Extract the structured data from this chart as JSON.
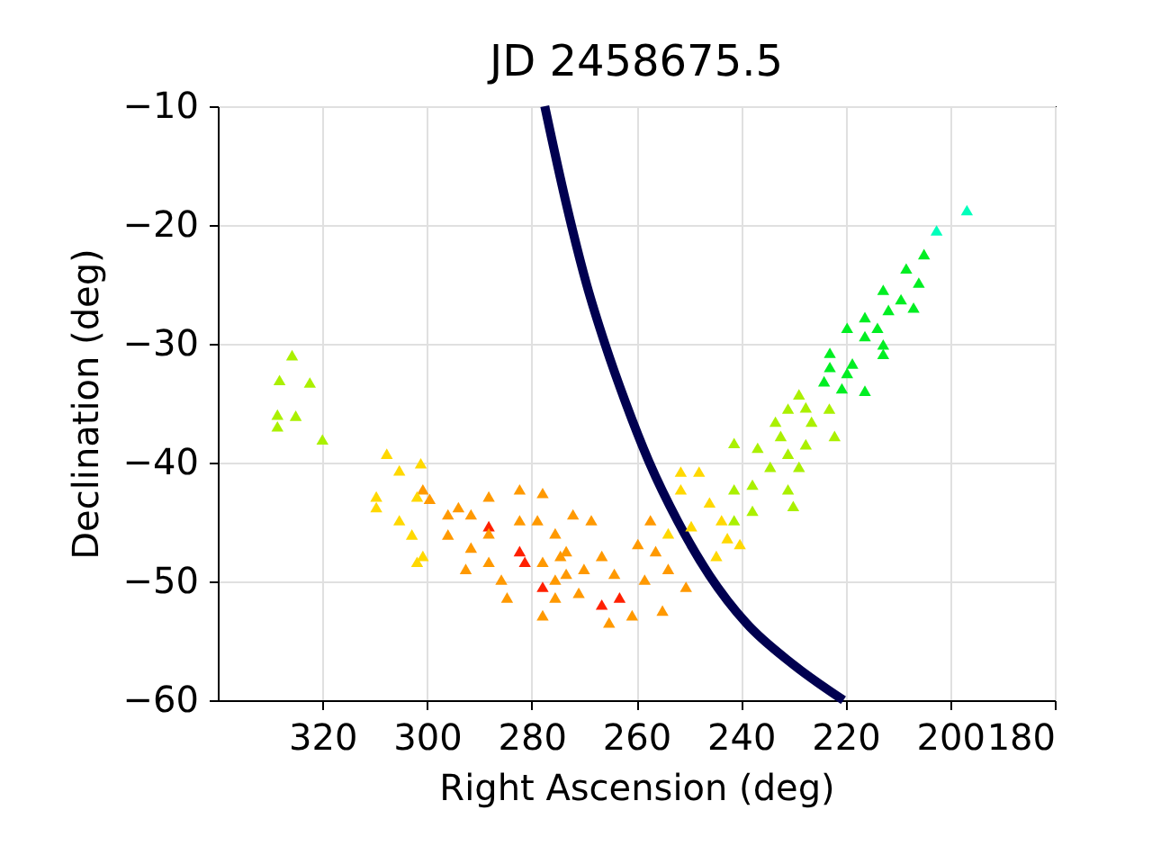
{
  "chart_data": {
    "type": "scatter",
    "title": "JD 2458675.5",
    "xlabel": "Right Ascension (deg)",
    "ylabel": "Declination (deg)",
    "xlim": [
      340,
      180
    ],
    "xticks": [
      320,
      300,
      280,
      260,
      240,
      220,
      200,
      180
    ],
    "ylim": [
      -60,
      -10
    ],
    "yticks": [
      -60,
      -50,
      -40,
      -30,
      -20,
      -10
    ],
    "grid": true,
    "marker": "triangle",
    "series": [
      {
        "type": "line",
        "marker": "none",
        "color": "#000050",
        "x": [
          277.5,
          273.5,
          269.5,
          266,
          262,
          257.5,
          252,
          246,
          239,
          230,
          220.4
        ],
        "values": [
          -10,
          -18,
          -25,
          -30,
          -35,
          -40,
          -45,
          -49.5,
          -53.5,
          -57,
          -60
        ]
      },
      {
        "color": "#ff2000",
        "x": [
          282.3,
          281.3,
          277.9,
          288.2,
          266.6,
          263.2
        ],
        "values": [
          -47.6,
          -48.5,
          -50.6,
          -45.5,
          -52.1,
          -51.5
        ]
      },
      {
        "color": "#ff9900",
        "x": [
          300.8,
          299.5,
          294,
          296,
          291.6,
          288.2,
          282.3,
          277.9,
          296,
          291.6,
          288.2,
          282.3,
          278.9,
          275.5,
          292.6,
          288.2,
          285.8,
          277.9,
          274.5,
          284.7,
          277.9,
          275.5,
          273.4,
          257.3,
          256.3,
          253.9,
          259.7,
          258.4,
          264.2,
          266.6,
          265.2,
          270,
          271,
          268.6,
          272.1,
          273.4,
          275.5,
          260.8,
          250.5,
          255
        ],
        "values": [
          -42.4,
          -43.2,
          -43.9,
          -44.5,
          -44.5,
          -43,
          -42.4,
          -42.7,
          -46.2,
          -47.3,
          -46.1,
          -45,
          -45,
          -46.1,
          -49.1,
          -48.5,
          -50,
          -48.5,
          -48,
          -51.5,
          -53,
          -51.5,
          -49.5,
          -45,
          -47.6,
          -49.1,
          -47,
          -50,
          -49.5,
          -48,
          -53.6,
          -49.1,
          -51.1,
          -45,
          -44.5,
          -47.6,
          -50,
          -53,
          -50.6,
          -52.6
        ]
      },
      {
        "color": "#ffd800",
        "x": [
          307.7,
          305.3,
          301.2,
          309.7,
          309.7,
          301.9,
          305.3,
          302.9,
          300.8,
          301.9,
          251.5,
          248,
          246,
          243.7,
          249.5,
          242.6,
          244.7,
          240.2,
          253.9,
          251.5
        ],
        "values": [
          -39.4,
          -40.8,
          -40.2,
          -43,
          -43.9,
          -43,
          -45,
          -46.2,
          -48,
          -48.5,
          -42.4,
          -40.9,
          -43.5,
          -45,
          -45.5,
          -46.5,
          -48,
          -47,
          -46.1,
          -40.9
        ]
      },
      {
        "color": "#aaf000",
        "x": [
          325.8,
          328.2,
          322.4,
          328.6,
          325.1,
          328.6,
          320,
          228.9,
          227.6,
          231,
          223.1,
          233.4,
          226.5,
          222.1,
          232.4,
          227.6,
          236.8,
          231,
          241.3,
          228.9,
          234.4,
          237.8,
          231,
          241.3,
          230,
          237.8,
          241.3
        ],
        "values": [
          -31.1,
          -33.2,
          -33.4,
          -36.1,
          -36.2,
          -37.1,
          -38.2,
          -34.4,
          -35.5,
          -35.6,
          -35.6,
          -36.7,
          -36.7,
          -37.9,
          -37.9,
          -38.6,
          -38.9,
          -39.4,
          -38.5,
          -40.5,
          -40.5,
          -42,
          -42.4,
          -42.4,
          -43.8,
          -44.2,
          -45
        ]
      },
      {
        "color": "#00ee22",
        "x": [
          205,
          208.4,
          206,
          212.8,
          209.4,
          207,
          216.3,
          211.8,
          219.7,
          213.9,
          216.3,
          212.8,
          212.8,
          223,
          223,
          218.7,
          219.7,
          216.3,
          224.1,
          220.7
        ],
        "values": [
          -22.6,
          -23.8,
          -25,
          -25.6,
          -26.4,
          -27.1,
          -27.9,
          -27.3,
          -28.8,
          -28.8,
          -29.5,
          -30.2,
          -31,
          -30.9,
          -32.1,
          -31.8,
          -32.6,
          -34.1,
          -33.3,
          -33.9
        ]
      },
      {
        "color": "#00ffbb",
        "x": [
          196.8,
          202.6
        ],
        "values": [
          -18.9,
          -20.6
        ]
      }
    ]
  }
}
